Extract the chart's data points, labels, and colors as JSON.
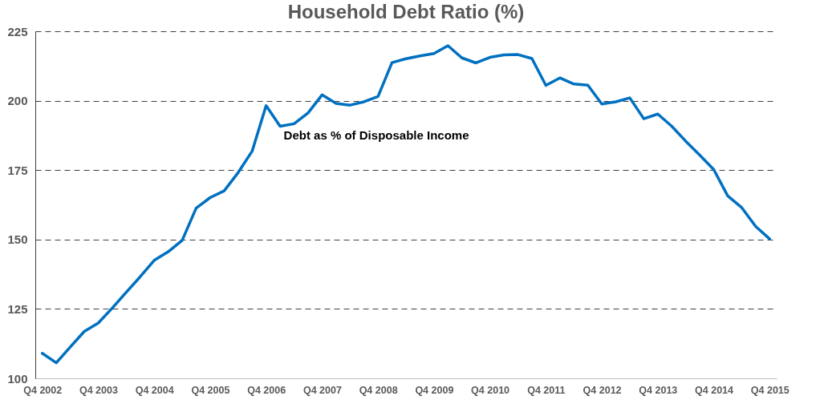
{
  "chart_data": {
    "type": "line",
    "title": "Household Debt Ratio (%)",
    "categories": [
      "Q4 2002",
      null,
      null,
      null,
      "Q4 2003",
      null,
      null,
      null,
      "Q4 2004",
      null,
      null,
      null,
      "Q4 2005",
      null,
      null,
      null,
      "Q4 2006",
      null,
      null,
      null,
      "Q4 2007",
      null,
      null,
      null,
      "Q4 2008",
      null,
      null,
      null,
      "Q4 2009",
      null,
      null,
      null,
      "Q4 2010",
      null,
      null,
      null,
      "Q4 2011",
      null,
      null,
      null,
      "Q4 2012",
      null,
      null,
      null,
      "Q4 2013",
      null,
      null,
      null,
      "Q4 2014",
      null,
      null,
      null,
      "Q4 2015"
    ],
    "series": [
      {
        "color": "#0070c0",
        "values": [
          109,
          105.6,
          111.3,
          116.9,
          119.9,
          125.3,
          131,
          136.6,
          142.5,
          145.6,
          149.7,
          161.3,
          165.1,
          167.5,
          174.1,
          181.8,
          198.2,
          190.8,
          191.7,
          195.6,
          202.1,
          199,
          198.4,
          199.6,
          201.5,
          213.7,
          215.1,
          216.1,
          217,
          219.8,
          215.4,
          213.6,
          215.6,
          216.5,
          216.6,
          215.2,
          205.5,
          208.2,
          206,
          205.6,
          198.8,
          199.6,
          201,
          193.5,
          195.2,
          190.8,
          185.4,
          180.4,
          175.2,
          165.7,
          161.5,
          154.7,
          150.2
        ]
      }
    ],
    "ylim": [
      100,
      225
    ],
    "yticks": [
      100,
      125,
      150,
      175,
      200,
      225
    ],
    "grid": "y",
    "annotations": [
      "Debt as % of Disposable Income"
    ]
  }
}
